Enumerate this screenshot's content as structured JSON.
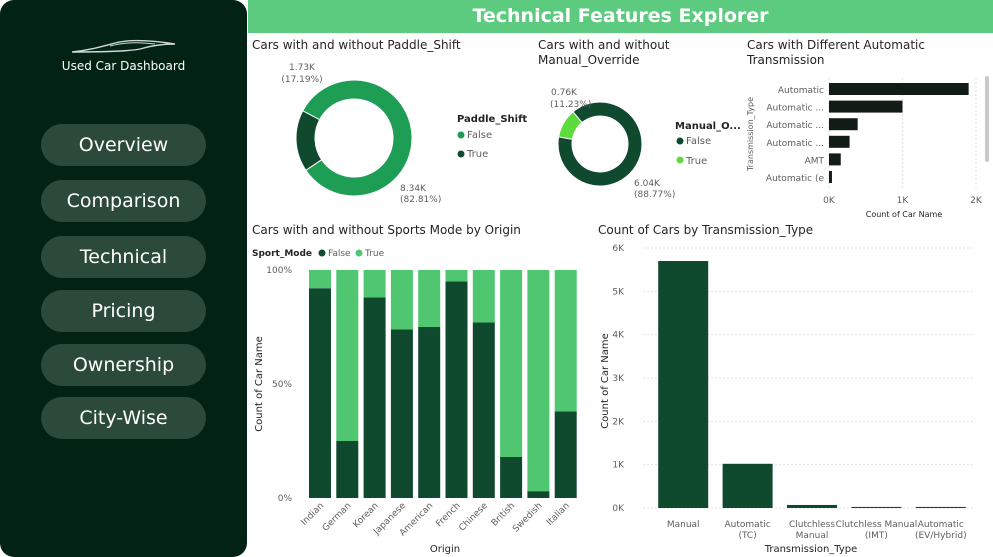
{
  "sidebar": {
    "brand": "Used Car Dashboard",
    "nav": [
      "Overview",
      "Comparison",
      "Technical",
      "Pricing",
      "Ownership",
      "City-Wise"
    ]
  },
  "header": {
    "title": "Technical Features Explorer"
  },
  "colors": {
    "dark_green": "#0f4a2e",
    "green": "#1e9e55",
    "light_green": "#4fc66f",
    "bright_green": "#5edb3c",
    "bar_dark": "#111c17",
    "header": "#5ccb7f"
  },
  "chart_data": [
    {
      "id": "paddle",
      "type": "pie",
      "title": "Cars with and without Paddle_Shift",
      "legend_title": "Paddle_Shift",
      "slices": [
        {
          "label": "False",
          "value": 8.34,
          "value_label": "8.34K",
          "pct_label": "(82.81%)",
          "color": "#1e9e55"
        },
        {
          "label": "True",
          "value": 1.73,
          "value_label": "1.73K",
          "pct_label": "(17.19%)",
          "color": "#0f4a2e"
        }
      ]
    },
    {
      "id": "manual",
      "type": "pie",
      "title": "Cars with and without Manual_Override",
      "legend_title": "Manual_O...",
      "slices": [
        {
          "label": "False",
          "value": 6.04,
          "value_label": "6.04K",
          "pct_label": "(88.77%)",
          "color": "#0f4a2e"
        },
        {
          "label": "True",
          "value": 0.76,
          "value_label": "0.76K",
          "pct_label": "(11.23%)",
          "color": "#5edb3c"
        }
      ]
    },
    {
      "id": "auto",
      "type": "bar",
      "title": "Cars with Different Automatic Transmission",
      "ylabel": "Transmission_Type",
      "xlabel": "Count of Car Name",
      "categories": [
        "Automatic",
        "Automatic ...",
        "Automatic ...",
        "Automatic ...",
        "AMT",
        "Automatic (e"
      ],
      "values": [
        1900,
        1000,
        390,
        280,
        160,
        40
      ],
      "xticks": [
        "0K",
        "1K",
        "2K"
      ],
      "xlim": [
        0,
        2000
      ]
    },
    {
      "id": "sports",
      "type": "bar",
      "title": "Cars with and without Sports Mode by Origin",
      "legend_title": "Sport_Mode",
      "xlabel": "Origin",
      "ylabel": "Count of Car Name",
      "categories": [
        "Indian",
        "German",
        "Korean",
        "Japanese",
        "American",
        "French",
        "Chinese",
        "British",
        "Swedish",
        "Italian"
      ],
      "series": [
        {
          "name": "False",
          "values": [
            92,
            25,
            88,
            74,
            75,
            95,
            77,
            18,
            3,
            38
          ]
        },
        {
          "name": "True",
          "values": [
            8,
            75,
            12,
            26,
            25,
            5,
            23,
            82,
            97,
            62
          ]
        }
      ],
      "yticks": [
        "0%",
        "50%",
        "100%"
      ],
      "ylim": [
        0,
        100
      ]
    },
    {
      "id": "trans",
      "type": "bar",
      "title": "Count of Cars by Transmission_Type",
      "xlabel": "Transmission_Type",
      "ylabel": "Count of Car Name",
      "categories": [
        "Manual",
        "Automatic (TC)",
        "Clutchless Manual",
        "Clutchless Manual (IMT)",
        "Automatic (EV/Hybrid)"
      ],
      "values": [
        5700,
        1020,
        70,
        25,
        25
      ],
      "yticks": [
        "0K",
        "1K",
        "2K",
        "3K",
        "4K",
        "5K",
        "6K"
      ],
      "ylim": [
        0,
        6000
      ]
    }
  ]
}
